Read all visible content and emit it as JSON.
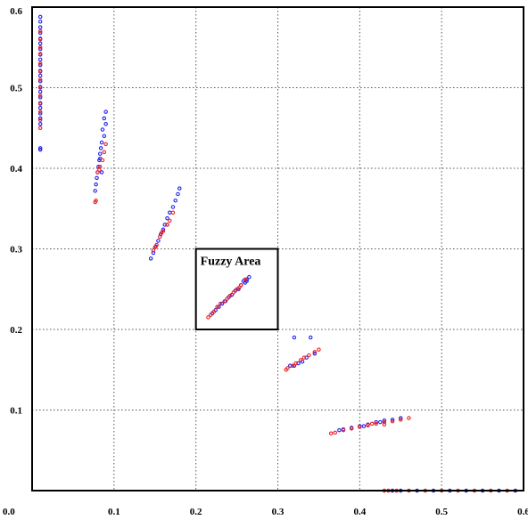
{
  "chart_data": {
    "type": "scatter",
    "title": "",
    "xlabel": "",
    "ylabel": "",
    "xlim": [
      0.0,
      0.6
    ],
    "ylim": [
      0.0,
      0.6
    ],
    "grid": true,
    "legend": "none",
    "x_ticks": [
      0.1,
      0.2,
      0.3,
      0.4,
      0.5
    ],
    "y_ticks": [
      0.1,
      0.2,
      0.3,
      0.4,
      0.5
    ],
    "x_tick_labels": [
      "0.0",
      "0.1",
      "0.2",
      "0.3",
      "0.4",
      "0.5",
      "0.6"
    ],
    "y_tick_labels": [
      "0.1",
      "0.2",
      "0.3",
      "0.4",
      "0.5",
      "0.6"
    ],
    "colors": {
      "series_a": "#2222ee",
      "series_b": "#ee2222",
      "axis": "#000000",
      "grid": "#555555"
    },
    "annotation": {
      "label": "Fuzzy Area",
      "x0": 0.2,
      "x1": 0.3,
      "y0": 0.2,
      "y1": 0.3
    },
    "series": [
      {
        "color": "#2222ee",
        "points": [
          [
            0.01,
            0.588
          ],
          [
            0.01,
            0.582
          ],
          [
            0.01,
            0.575
          ],
          [
            0.01,
            0.568
          ],
          [
            0.01,
            0.561
          ],
          [
            0.01,
            0.555
          ],
          [
            0.01,
            0.548
          ],
          [
            0.01,
            0.541
          ],
          [
            0.01,
            0.535
          ],
          [
            0.01,
            0.528
          ],
          [
            0.01,
            0.521
          ],
          [
            0.01,
            0.515
          ],
          [
            0.01,
            0.508
          ],
          [
            0.01,
            0.501
          ],
          [
            0.01,
            0.495
          ],
          [
            0.01,
            0.488
          ],
          [
            0.01,
            0.481
          ],
          [
            0.01,
            0.475
          ],
          [
            0.01,
            0.468
          ],
          [
            0.01,
            0.462
          ],
          [
            0.01,
            0.455
          ],
          [
            0.01,
            0.425
          ],
          [
            0.01,
            0.423
          ],
          [
            0.09,
            0.47
          ],
          [
            0.088,
            0.462
          ],
          [
            0.09,
            0.455
          ],
          [
            0.086,
            0.448
          ],
          [
            0.088,
            0.44
          ],
          [
            0.085,
            0.432
          ],
          [
            0.084,
            0.425
          ],
          [
            0.083,
            0.418
          ],
          [
            0.082,
            0.41
          ],
          [
            0.081,
            0.402
          ],
          [
            0.08,
            0.395
          ],
          [
            0.079,
            0.388
          ],
          [
            0.078,
            0.38
          ],
          [
            0.077,
            0.372
          ],
          [
            0.085,
            0.395
          ],
          [
            0.083,
            0.412
          ],
          [
            0.18,
            0.375
          ],
          [
            0.178,
            0.368
          ],
          [
            0.175,
            0.36
          ],
          [
            0.172,
            0.352
          ],
          [
            0.168,
            0.345
          ],
          [
            0.165,
            0.338
          ],
          [
            0.162,
            0.33
          ],
          [
            0.16,
            0.324
          ],
          [
            0.157,
            0.318
          ],
          [
            0.154,
            0.31
          ],
          [
            0.151,
            0.303
          ],
          [
            0.148,
            0.295
          ],
          [
            0.145,
            0.288
          ],
          [
            0.165,
            0.33
          ],
          [
            0.265,
            0.265
          ],
          [
            0.262,
            0.262
          ],
          [
            0.258,
            0.26
          ],
          [
            0.255,
            0.255
          ],
          [
            0.252,
            0.25
          ],
          [
            0.248,
            0.248
          ],
          [
            0.244,
            0.243
          ],
          [
            0.24,
            0.24
          ],
          [
            0.236,
            0.235
          ],
          [
            0.232,
            0.232
          ],
          [
            0.228,
            0.228
          ],
          [
            0.224,
            0.224
          ],
          [
            0.22,
            0.22
          ],
          [
            0.26,
            0.258
          ],
          [
            0.262,
            0.26
          ],
          [
            0.34,
            0.19
          ],
          [
            0.32,
            0.19
          ],
          [
            0.345,
            0.17
          ],
          [
            0.335,
            0.165
          ],
          [
            0.33,
            0.16
          ],
          [
            0.325,
            0.158
          ],
          [
            0.32,
            0.155
          ],
          [
            0.315,
            0.155
          ],
          [
            0.45,
            0.09
          ],
          [
            0.44,
            0.088
          ],
          [
            0.43,
            0.087
          ],
          [
            0.42,
            0.085
          ],
          [
            0.41,
            0.082
          ],
          [
            0.4,
            0.08
          ],
          [
            0.39,
            0.078
          ],
          [
            0.38,
            0.076
          ],
          [
            0.375,
            0.075
          ],
          [
            0.405,
            0.08
          ],
          [
            0.425,
            0.085
          ],
          [
            0.59,
            0.0
          ],
          [
            0.57,
            0.0
          ],
          [
            0.55,
            0.0
          ],
          [
            0.53,
            0.0
          ],
          [
            0.51,
            0.0
          ],
          [
            0.49,
            0.0
          ],
          [
            0.47,
            0.0
          ],
          [
            0.45,
            0.0
          ],
          [
            0.44,
            0.0
          ]
        ]
      },
      {
        "color": "#ee2222",
        "points": [
          [
            0.01,
            0.57
          ],
          [
            0.01,
            0.56
          ],
          [
            0.01,
            0.55
          ],
          [
            0.01,
            0.542
          ],
          [
            0.01,
            0.53
          ],
          [
            0.01,
            0.52
          ],
          [
            0.01,
            0.51
          ],
          [
            0.01,
            0.5
          ],
          [
            0.01,
            0.49
          ],
          [
            0.01,
            0.48
          ],
          [
            0.01,
            0.47
          ],
          [
            0.01,
            0.46
          ],
          [
            0.01,
            0.45
          ],
          [
            0.09,
            0.43
          ],
          [
            0.088,
            0.42
          ],
          [
            0.086,
            0.41
          ],
          [
            0.083,
            0.402
          ],
          [
            0.082,
            0.398
          ],
          [
            0.08,
            0.395
          ],
          [
            0.078,
            0.36
          ],
          [
            0.077,
            0.358
          ],
          [
            0.172,
            0.345
          ],
          [
            0.168,
            0.335
          ],
          [
            0.165,
            0.33
          ],
          [
            0.16,
            0.322
          ],
          [
            0.156,
            0.315
          ],
          [
            0.152,
            0.305
          ],
          [
            0.148,
            0.298
          ],
          [
            0.15,
            0.302
          ],
          [
            0.158,
            0.32
          ],
          [
            0.26,
            0.262
          ],
          [
            0.255,
            0.255
          ],
          [
            0.25,
            0.25
          ],
          [
            0.246,
            0.246
          ],
          [
            0.242,
            0.242
          ],
          [
            0.238,
            0.238
          ],
          [
            0.235,
            0.235
          ],
          [
            0.23,
            0.232
          ],
          [
            0.226,
            0.228
          ],
          [
            0.222,
            0.222
          ],
          [
            0.218,
            0.218
          ],
          [
            0.215,
            0.215
          ],
          [
            0.253,
            0.252
          ],
          [
            0.35,
            0.175
          ],
          [
            0.345,
            0.172
          ],
          [
            0.338,
            0.168
          ],
          [
            0.332,
            0.165
          ],
          [
            0.328,
            0.162
          ],
          [
            0.322,
            0.158
          ],
          [
            0.318,
            0.155
          ],
          [
            0.312,
            0.152
          ],
          [
            0.31,
            0.15
          ],
          [
            0.46,
            0.09
          ],
          [
            0.45,
            0.088
          ],
          [
            0.44,
            0.086
          ],
          [
            0.43,
            0.085
          ],
          [
            0.42,
            0.083
          ],
          [
            0.41,
            0.081
          ],
          [
            0.4,
            0.079
          ],
          [
            0.39,
            0.077
          ],
          [
            0.38,
            0.075
          ],
          [
            0.37,
            0.072
          ],
          [
            0.365,
            0.071
          ],
          [
            0.43,
            0.082
          ],
          [
            0.415,
            0.083
          ],
          [
            0.58,
            0.0
          ],
          [
            0.56,
            0.0
          ],
          [
            0.54,
            0.0
          ],
          [
            0.52,
            0.0
          ],
          [
            0.5,
            0.0
          ],
          [
            0.48,
            0.0
          ],
          [
            0.46,
            0.0
          ],
          [
            0.445,
            0.0
          ],
          [
            0.435,
            0.0
          ],
          [
            0.43,
            0.0
          ]
        ]
      }
    ]
  }
}
